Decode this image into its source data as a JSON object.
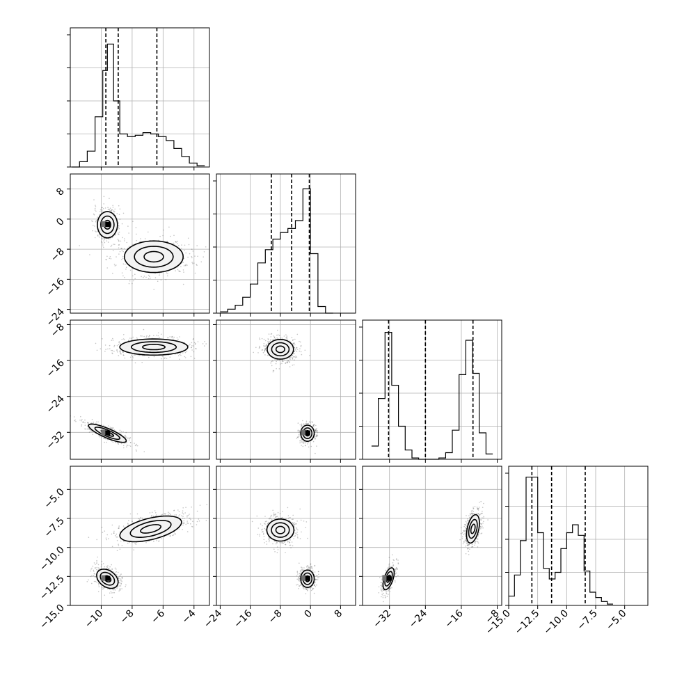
{
  "colors": {
    "line": "#000000",
    "grid": "#b0b0b0",
    "points": "#555555",
    "fill_light": "#f2f2f2",
    "fill_mid": "#c8c8c8",
    "fill_dark": "#707070",
    "fill_core": "#000000"
  },
  "chart_data": {
    "type": "corner",
    "title": "",
    "parameters": [
      "",
      "",
      "",
      ""
    ],
    "grid": true,
    "axes": [
      {
        "range": [
          -12,
          -3
        ],
        "ticks": [
          -10,
          -8,
          -6,
          -4
        ],
        "tick_labels": [
          "−10",
          "−8",
          "−6",
          "−4"
        ]
      },
      {
        "range": [
          -25,
          12
        ],
        "ticks": [
          -24,
          -16,
          -8,
          0,
          8
        ],
        "tick_labels": [
          "−24",
          "−16",
          "−8",
          "0",
          "8"
        ]
      },
      {
        "range": [
          -38,
          -7
        ],
        "ticks": [
          -32,
          -24,
          -16,
          -8
        ],
        "tick_labels": [
          "−32",
          "−24",
          "−16",
          "−8"
        ]
      },
      {
        "range": [
          -15,
          -3
        ],
        "ticks": [
          -15,
          -12.5,
          -10,
          -7.5,
          -5
        ],
        "tick_labels": [
          "−15.0",
          "−12.5",
          "−10.0",
          "−7.5",
          "−5.0"
        ]
      }
    ],
    "histograms": [
      {
        "param": 0,
        "quantiles": [
          -9.7,
          -8.9,
          -6.4
        ],
        "bins": [
          [
            -11.9,
            -11.4,
            0
          ],
          [
            -11.4,
            -10.9,
            0.04
          ],
          [
            -10.9,
            -10.4,
            0.12
          ],
          [
            -10.4,
            -9.9,
            0.38
          ],
          [
            -9.9,
            -9.6,
            0.73
          ],
          [
            -9.6,
            -9.2,
            0.93
          ],
          [
            -9.2,
            -8.8,
            0.5
          ],
          [
            -8.8,
            -8.3,
            0.25
          ],
          [
            -8.3,
            -7.8,
            0.23
          ],
          [
            -7.8,
            -7.3,
            0.24
          ],
          [
            -7.3,
            -6.8,
            0.26
          ],
          [
            -6.8,
            -6.3,
            0.25
          ],
          [
            -6.3,
            -5.8,
            0.23
          ],
          [
            -5.8,
            -5.3,
            0.2
          ],
          [
            -5.3,
            -4.8,
            0.14
          ],
          [
            -4.8,
            -4.3,
            0.08
          ],
          [
            -4.3,
            -3.8,
            0.03
          ],
          [
            -3.8,
            -3.3,
            0.01
          ]
        ]
      },
      {
        "param": 1,
        "quantiles": [
          -10.4,
          -5,
          -0.3
        ],
        "bins": [
          [
            -24,
            -22,
            0.01
          ],
          [
            -22,
            -20,
            0.03
          ],
          [
            -20,
            -18,
            0.06
          ],
          [
            -18,
            -16,
            0.12
          ],
          [
            -16,
            -14,
            0.22
          ],
          [
            -14,
            -12,
            0.38
          ],
          [
            -12,
            -10,
            0.48
          ],
          [
            -10,
            -8,
            0.56
          ],
          [
            -8,
            -6,
            0.61
          ],
          [
            -6,
            -4,
            0.64
          ],
          [
            -4,
            -2,
            0.7
          ],
          [
            -2,
            0,
            0.94
          ],
          [
            0,
            2,
            0.45
          ],
          [
            2,
            4,
            0.05
          ],
          [
            4,
            6,
            0
          ]
        ]
      },
      {
        "param": 2,
        "quantiles": [
          -32.2,
          -24,
          -13.4
        ],
        "bins": [
          [
            -36,
            -34.5,
            0.1
          ],
          [
            -34.5,
            -33,
            0.46
          ],
          [
            -33,
            -31.5,
            0.96
          ],
          [
            -31.5,
            -30,
            0.56
          ],
          [
            -30,
            -28.5,
            0.25
          ],
          [
            -28.5,
            -27,
            0.07
          ],
          [
            -27,
            -25.5,
            0.01
          ],
          [
            -25.5,
            -24,
            0
          ],
          [
            -24,
            -22.5,
            0
          ],
          [
            -22.5,
            -21,
            0
          ],
          [
            -21,
            -19.5,
            0.01
          ],
          [
            -19.5,
            -18,
            0.05
          ],
          [
            -18,
            -16.5,
            0.22
          ],
          [
            -16.5,
            -15,
            0.64
          ],
          [
            -15,
            -13.5,
            0.9
          ],
          [
            -13.5,
            -12,
            0.65
          ],
          [
            -12,
            -10.5,
            0.2
          ],
          [
            -10.5,
            -9,
            0.04
          ]
        ]
      },
      {
        "param": 3,
        "quantiles": [
          -13,
          -11.3,
          -8.4
        ],
        "bins": [
          [
            -15,
            -14.5,
            0.07
          ],
          [
            -14.5,
            -14,
            0.23
          ],
          [
            -14,
            -13.5,
            0.49
          ],
          [
            -13.5,
            -13,
            0.97
          ],
          [
            -13,
            -12.5,
            0.97
          ],
          [
            -12.5,
            -12,
            0.55
          ],
          [
            -12,
            -11.5,
            0.28
          ],
          [
            -11.5,
            -11,
            0.2
          ],
          [
            -11,
            -10.5,
            0.25
          ],
          [
            -10.5,
            -10,
            0.43
          ],
          [
            -10,
            -9.5,
            0.55
          ],
          [
            -9.5,
            -9,
            0.61
          ],
          [
            -9,
            -8.5,
            0.53
          ],
          [
            -8.5,
            -8,
            0.26
          ],
          [
            -8,
            -7.5,
            0.1
          ],
          [
            -7.5,
            -7,
            0.06
          ],
          [
            -7,
            -6.5,
            0.03
          ],
          [
            -6.5,
            -6,
            0.01
          ]
        ]
      }
    ],
    "joints": [
      {
        "row": 1,
        "col": 0,
        "points_n": 900,
        "blobs": [
          {
            "cx": -9.6,
            "cy": -1.5,
            "rx": 0.65,
            "ry": 3.5,
            "rot": 0,
            "w": 0.45,
            "core": true
          },
          {
            "cx": -6.6,
            "cy": -10,
            "rx": 1.9,
            "ry": 4.2,
            "rot": 0,
            "w": 0.55,
            "core": false
          }
        ]
      },
      {
        "row": 2,
        "col": 0,
        "points_n": 900,
        "blobs": [
          {
            "cx": -9.6,
            "cy": -32.2,
            "rx": 0.6,
            "ry": 2.3,
            "rot": 0.5,
            "w": 0.45,
            "core": true
          },
          {
            "cx": -6.6,
            "cy": -13,
            "rx": 2.2,
            "ry": 1.8,
            "rot": 0,
            "w": 0.55,
            "core": false
          }
        ]
      },
      {
        "row": 3,
        "col": 0,
        "points_n": 900,
        "blobs": [
          {
            "cx": -9.6,
            "cy": -12.7,
            "rx": 0.6,
            "ry": 0.9,
            "rot": 0.55,
            "w": 0.45,
            "core": true
          },
          {
            "cx": -6.8,
            "cy": -8.4,
            "rx": 2.1,
            "ry": 0.9,
            "rot": 0.35,
            "w": 0.55,
            "core": false
          }
        ]
      },
      {
        "row": 2,
        "col": 1,
        "points_n": 900,
        "blobs": [
          {
            "cx": -8,
            "cy": -13.5,
            "rx": 3.5,
            "ry": 2.2,
            "rot": 0,
            "w": 0.55,
            "core": false
          },
          {
            "cx": -0.8,
            "cy": -32.2,
            "rx": 1.8,
            "ry": 1.8,
            "rot": 0,
            "w": 0.45,
            "core": true
          }
        ]
      },
      {
        "row": 3,
        "col": 1,
        "points_n": 900,
        "blobs": [
          {
            "cx": -8,
            "cy": -8.5,
            "rx": 3.6,
            "ry": 0.95,
            "rot": 0,
            "w": 0.55,
            "core": false
          },
          {
            "cx": -0.8,
            "cy": -12.7,
            "rx": 1.8,
            "ry": 0.75,
            "rot": 0,
            "w": 0.45,
            "core": true
          }
        ]
      },
      {
        "row": 3,
        "col": 2,
        "points_n": 900,
        "blobs": [
          {
            "cx": -32.2,
            "cy": -12.7,
            "rx": 1.4,
            "ry": 0.7,
            "rot": 0.55,
            "w": 0.45,
            "core": true
          },
          {
            "cx": -13.4,
            "cy": -8.4,
            "rx": 1.6,
            "ry": 1.0,
            "rot": 0.6,
            "w": 0.55,
            "core": false
          }
        ]
      }
    ]
  }
}
